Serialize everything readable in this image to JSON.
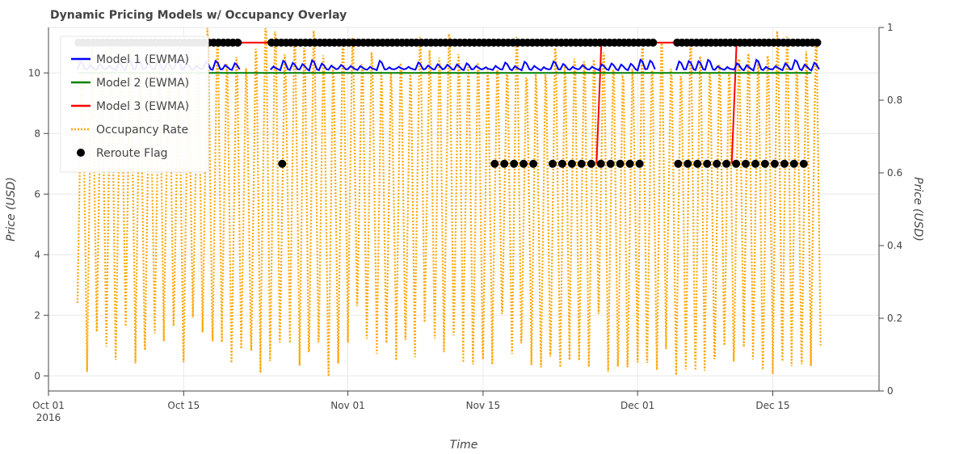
{
  "chart_data": {
    "type": "line",
    "title": "Dynamic Pricing Models w/ Occupancy Overlay",
    "xlabel": "Time",
    "ylabel": "Price (USD)",
    "ylabel_right": "Price (USD)",
    "xlim": [
      "2016-10-01",
      "2016-12-26"
    ],
    "ylim": [
      -0.5,
      11.5
    ],
    "ylim_right": [
      0,
      1
    ],
    "x_ticks": [
      {
        "date": "2016-10-01",
        "label": "Oct 01",
        "sublabel": "2016"
      },
      {
        "date": "2016-10-15",
        "label": "Oct 15"
      },
      {
        "date": "2016-11-01",
        "label": "Nov 01"
      },
      {
        "date": "2016-11-15",
        "label": "Nov 15"
      },
      {
        "date": "2016-12-01",
        "label": "Dec 01"
      },
      {
        "date": "2016-12-15",
        "label": "Dec 15"
      }
    ],
    "y_ticks": [
      "0",
      "2",
      "4",
      "6",
      "8",
      "10"
    ],
    "y_ticks_right": [
      "0",
      "0.2",
      "0.4",
      "0.6",
      "0.8",
      "1"
    ],
    "grid": true,
    "legend_position": "top-left",
    "data_start": "2016-10-04",
    "data_end": "2016-12-19",
    "gaps": [
      [
        "2016-10-20",
        "2016-10-24"
      ],
      [
        "2016-12-02",
        "2016-12-05"
      ]
    ],
    "series": [
      {
        "name": "Model 1 (EWMA)",
        "color": "#0000ff",
        "style": "solid",
        "axis": "left",
        "typical_range": [
          10.0,
          10.45
        ]
      },
      {
        "name": "Model 2 (EWMA)",
        "color": "#008000",
        "style": "solid",
        "axis": "left",
        "values_constant": 10.0
      },
      {
        "name": "Model 3 (EWMA)",
        "color": "#ff0000",
        "style": "solid",
        "axis": "left",
        "values_constant": 11.0,
        "spikes": [
          {
            "date": "2016-11-27",
            "from": 7.0,
            "to": 11.0
          },
          {
            "date": "2016-12-11",
            "from": 7.0,
            "to": 11.0
          }
        ]
      },
      {
        "name": "Occupancy Rate",
        "color": "#ffa500",
        "style": "dotted",
        "axis": "right",
        "daily_cycle": true,
        "typical_range": [
          0.03,
          1.0
        ]
      },
      {
        "name": "Reroute Flag",
        "color": "#000000",
        "style": "markers",
        "axis": "left",
        "levels": [
          7,
          11
        ]
      }
    ]
  }
}
